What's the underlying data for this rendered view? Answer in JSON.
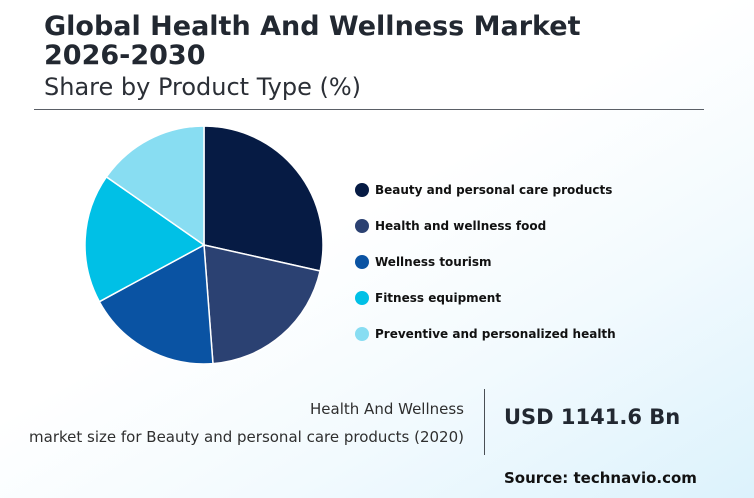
{
  "header": {
    "title_line1": "Global Health And Wellness Market",
    "title_line2": "2026-2030",
    "subtitle": "Share by Product Type (%)"
  },
  "chart_data": {
    "type": "pie",
    "title": "Global Health And Wellness Market 2026-2030",
    "subtitle": "Share by Product Type (%)",
    "legend_position": "right",
    "categories": [
      "Beauty and personal care products",
      "Health and wellness food",
      "Wellness tourism",
      "Fitness equipment",
      "Preventive and personalized health"
    ],
    "values": [
      28.5,
      20.3,
      18.3,
      17.6,
      15.3
    ],
    "colors": [
      "#061b44",
      "#2b4172",
      "#0a53a3",
      "#00c0e6",
      "#88ddf2"
    ]
  },
  "footer": {
    "market_label_line1": "Health And Wellness",
    "market_label_line2": "market size for Beauty and personal care products (2020)",
    "market_value": "USD 1141.6 Bn",
    "source": "Source: technavio.com"
  }
}
